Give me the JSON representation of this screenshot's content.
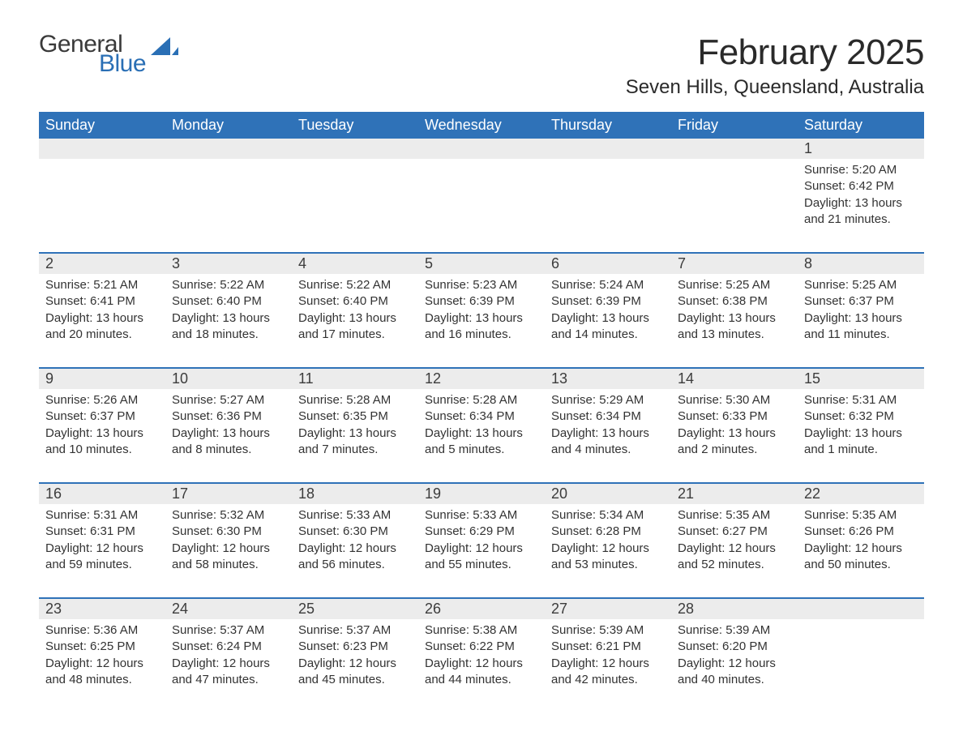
{
  "brand": {
    "general": "General",
    "blue": "Blue",
    "logo_color": "#2a6fb5",
    "text_color": "#3a3a3a"
  },
  "title": "February 2025",
  "location": "Seven Hills, Queensland, Australia",
  "colors": {
    "header_bg": "#2f72b8",
    "header_text": "#ffffff",
    "daynum_bg": "#ececec",
    "body_text": "#333333",
    "week_border": "#2f72b8",
    "page_bg": "#ffffff"
  },
  "typography": {
    "title_fontsize": 44,
    "location_fontsize": 24,
    "dayheader_fontsize": 18,
    "daynum_fontsize": 18,
    "detail_fontsize": 15
  },
  "day_headers": [
    "Sunday",
    "Monday",
    "Tuesday",
    "Wednesday",
    "Thursday",
    "Friday",
    "Saturday"
  ],
  "weeks": [
    [
      {
        "n": "",
        "sr": "",
        "ss": "",
        "dl": ""
      },
      {
        "n": "",
        "sr": "",
        "ss": "",
        "dl": ""
      },
      {
        "n": "",
        "sr": "",
        "ss": "",
        "dl": ""
      },
      {
        "n": "",
        "sr": "",
        "ss": "",
        "dl": ""
      },
      {
        "n": "",
        "sr": "",
        "ss": "",
        "dl": ""
      },
      {
        "n": "",
        "sr": "",
        "ss": "",
        "dl": ""
      },
      {
        "n": "1",
        "sr": "Sunrise: 5:20 AM",
        "ss": "Sunset: 6:42 PM",
        "dl": "Daylight: 13 hours and 21 minutes."
      }
    ],
    [
      {
        "n": "2",
        "sr": "Sunrise: 5:21 AM",
        "ss": "Sunset: 6:41 PM",
        "dl": "Daylight: 13 hours and 20 minutes."
      },
      {
        "n": "3",
        "sr": "Sunrise: 5:22 AM",
        "ss": "Sunset: 6:40 PM",
        "dl": "Daylight: 13 hours and 18 minutes."
      },
      {
        "n": "4",
        "sr": "Sunrise: 5:22 AM",
        "ss": "Sunset: 6:40 PM",
        "dl": "Daylight: 13 hours and 17 minutes."
      },
      {
        "n": "5",
        "sr": "Sunrise: 5:23 AM",
        "ss": "Sunset: 6:39 PM",
        "dl": "Daylight: 13 hours and 16 minutes."
      },
      {
        "n": "6",
        "sr": "Sunrise: 5:24 AM",
        "ss": "Sunset: 6:39 PM",
        "dl": "Daylight: 13 hours and 14 minutes."
      },
      {
        "n": "7",
        "sr": "Sunrise: 5:25 AM",
        "ss": "Sunset: 6:38 PM",
        "dl": "Daylight: 13 hours and 13 minutes."
      },
      {
        "n": "8",
        "sr": "Sunrise: 5:25 AM",
        "ss": "Sunset: 6:37 PM",
        "dl": "Daylight: 13 hours and 11 minutes."
      }
    ],
    [
      {
        "n": "9",
        "sr": "Sunrise: 5:26 AM",
        "ss": "Sunset: 6:37 PM",
        "dl": "Daylight: 13 hours and 10 minutes."
      },
      {
        "n": "10",
        "sr": "Sunrise: 5:27 AM",
        "ss": "Sunset: 6:36 PM",
        "dl": "Daylight: 13 hours and 8 minutes."
      },
      {
        "n": "11",
        "sr": "Sunrise: 5:28 AM",
        "ss": "Sunset: 6:35 PM",
        "dl": "Daylight: 13 hours and 7 minutes."
      },
      {
        "n": "12",
        "sr": "Sunrise: 5:28 AM",
        "ss": "Sunset: 6:34 PM",
        "dl": "Daylight: 13 hours and 5 minutes."
      },
      {
        "n": "13",
        "sr": "Sunrise: 5:29 AM",
        "ss": "Sunset: 6:34 PM",
        "dl": "Daylight: 13 hours and 4 minutes."
      },
      {
        "n": "14",
        "sr": "Sunrise: 5:30 AM",
        "ss": "Sunset: 6:33 PM",
        "dl": "Daylight: 13 hours and 2 minutes."
      },
      {
        "n": "15",
        "sr": "Sunrise: 5:31 AM",
        "ss": "Sunset: 6:32 PM",
        "dl": "Daylight: 13 hours and 1 minute."
      }
    ],
    [
      {
        "n": "16",
        "sr": "Sunrise: 5:31 AM",
        "ss": "Sunset: 6:31 PM",
        "dl": "Daylight: 12 hours and 59 minutes."
      },
      {
        "n": "17",
        "sr": "Sunrise: 5:32 AM",
        "ss": "Sunset: 6:30 PM",
        "dl": "Daylight: 12 hours and 58 minutes."
      },
      {
        "n": "18",
        "sr": "Sunrise: 5:33 AM",
        "ss": "Sunset: 6:30 PM",
        "dl": "Daylight: 12 hours and 56 minutes."
      },
      {
        "n": "19",
        "sr": "Sunrise: 5:33 AM",
        "ss": "Sunset: 6:29 PM",
        "dl": "Daylight: 12 hours and 55 minutes."
      },
      {
        "n": "20",
        "sr": "Sunrise: 5:34 AM",
        "ss": "Sunset: 6:28 PM",
        "dl": "Daylight: 12 hours and 53 minutes."
      },
      {
        "n": "21",
        "sr": "Sunrise: 5:35 AM",
        "ss": "Sunset: 6:27 PM",
        "dl": "Daylight: 12 hours and 52 minutes."
      },
      {
        "n": "22",
        "sr": "Sunrise: 5:35 AM",
        "ss": "Sunset: 6:26 PM",
        "dl": "Daylight: 12 hours and 50 minutes."
      }
    ],
    [
      {
        "n": "23",
        "sr": "Sunrise: 5:36 AM",
        "ss": "Sunset: 6:25 PM",
        "dl": "Daylight: 12 hours and 48 minutes."
      },
      {
        "n": "24",
        "sr": "Sunrise: 5:37 AM",
        "ss": "Sunset: 6:24 PM",
        "dl": "Daylight: 12 hours and 47 minutes."
      },
      {
        "n": "25",
        "sr": "Sunrise: 5:37 AM",
        "ss": "Sunset: 6:23 PM",
        "dl": "Daylight: 12 hours and 45 minutes."
      },
      {
        "n": "26",
        "sr": "Sunrise: 5:38 AM",
        "ss": "Sunset: 6:22 PM",
        "dl": "Daylight: 12 hours and 44 minutes."
      },
      {
        "n": "27",
        "sr": "Sunrise: 5:39 AM",
        "ss": "Sunset: 6:21 PM",
        "dl": "Daylight: 12 hours and 42 minutes."
      },
      {
        "n": "28",
        "sr": "Sunrise: 5:39 AM",
        "ss": "Sunset: 6:20 PM",
        "dl": "Daylight: 12 hours and 40 minutes."
      },
      {
        "n": "",
        "sr": "",
        "ss": "",
        "dl": ""
      }
    ]
  ]
}
